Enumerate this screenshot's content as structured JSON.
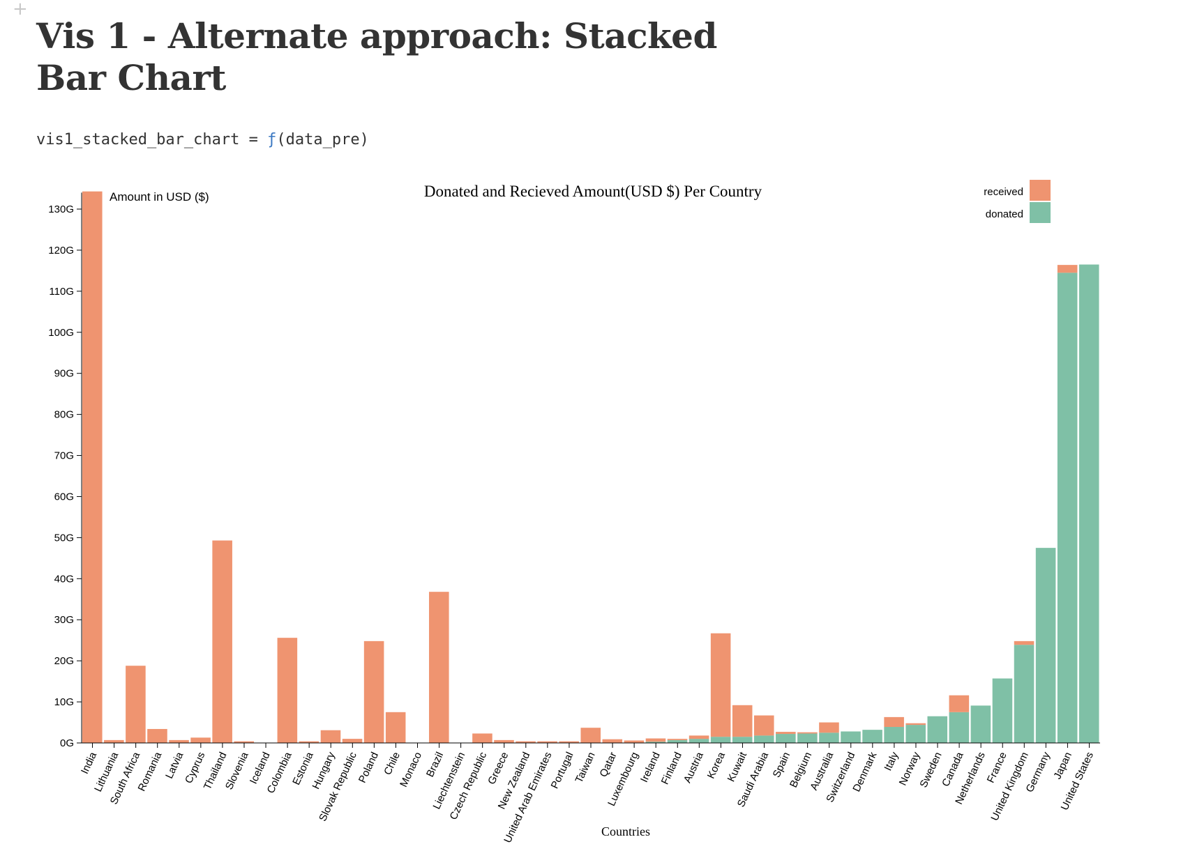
{
  "page": {
    "title": "Vis 1 - Alternate approach: Stacked Bar Chart",
    "code_var": "vis1_stacked_bar_chart = ",
    "code_fn": "ƒ",
    "code_args": "(data_pre)"
  },
  "colors": {
    "received": "#ef9470",
    "donated": "#7fc0a6"
  },
  "chart_data": {
    "type": "bar",
    "stacked": true,
    "title": "Donated and Recieved Amount(USD $) Per Country",
    "xlabel": "Countries",
    "ylabel": "Amount in USD ($)",
    "ylim": [
      0,
      134
    ],
    "y_unit": "G",
    "yticks": [
      0,
      10,
      20,
      30,
      40,
      50,
      60,
      70,
      80,
      90,
      100,
      110,
      120,
      130
    ],
    "yticklabels": [
      "0G",
      "10G",
      "20G",
      "30G",
      "40G",
      "50G",
      "60G",
      "70G",
      "80G",
      "90G",
      "100G",
      "110G",
      "120G",
      "130G"
    ],
    "legend_position": "top-right",
    "categories": [
      "India",
      "Lithuania",
      "South Africa",
      "Romania",
      "Latvia",
      "Cyprus",
      "Thailand",
      "Slovenia",
      "Iceland",
      "Colombia",
      "Estonia",
      "Hungary",
      "Slovak Republic",
      "Poland",
      "Chile",
      "Monaco",
      "Brazil",
      "Liechtenstein",
      "Czech Republic",
      "Greece",
      "New Zealand",
      "United Arab Emirates",
      "Portugal",
      "Taiwan",
      "Qatar",
      "Luxembourg",
      "Ireland",
      "Finland",
      "Austria",
      "Korea",
      "Kuwait",
      "Saudi Arabia",
      "Spain",
      "Belgium",
      "Australia",
      "Switzerland",
      "Denmark",
      "Italy",
      "Norway",
      "Sweden",
      "Canada",
      "Netherlands",
      "France",
      "United Kingdom",
      "Germany",
      "Japan",
      "United States"
    ],
    "series": [
      {
        "name": "donated",
        "values": [
          0,
          0,
          0,
          0,
          0,
          0,
          0,
          0,
          0,
          0,
          0,
          0,
          0,
          0,
          0,
          0,
          0,
          0,
          0,
          0,
          0,
          0,
          0,
          0,
          0,
          0,
          0.3,
          0.7,
          1.0,
          1.5,
          1.5,
          1.8,
          2.2,
          2.3,
          2.5,
          2.8,
          3.2,
          3.9,
          4.4,
          6.5,
          7.5,
          9.1,
          15.7,
          23.9,
          47.5,
          114.5,
          116.5
        ]
      },
      {
        "name": "received",
        "values": [
          134.3,
          0.7,
          18.8,
          3.4,
          0.7,
          1.3,
          49.3,
          0.4,
          0,
          25.6,
          0.4,
          3.1,
          1.0,
          24.8,
          7.5,
          0,
          36.8,
          0,
          2.3,
          0.7,
          0.4,
          0.4,
          0.4,
          3.7,
          0.9,
          0.6,
          0.8,
          0.3,
          0.8,
          25.2,
          7.7,
          4.9,
          0.5,
          0.3,
          2.5,
          0,
          0,
          2.4,
          0.4,
          0,
          4.1,
          0,
          0,
          0.9,
          0,
          1.9,
          0
        ]
      }
    ]
  }
}
